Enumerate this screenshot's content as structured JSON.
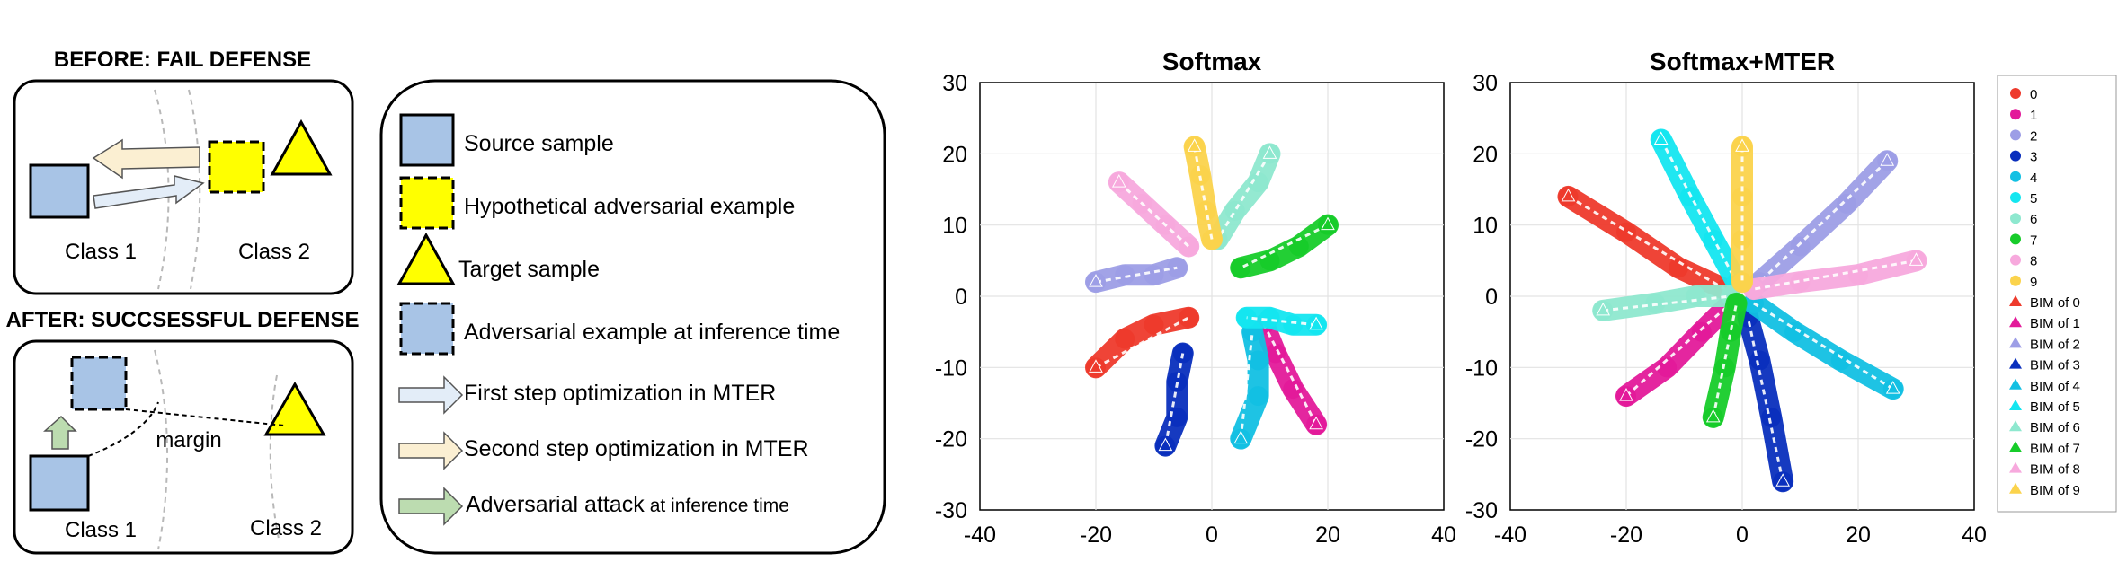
{
  "left": {
    "before_title": "BEFORE: FAIL DEFENSE",
    "after_title": "AFTER: SUCCSESSFUL DEFENSE",
    "class1": "Class 1",
    "class2": "Class 2",
    "margin": "margin"
  },
  "legend": {
    "items": [
      {
        "icon": "blue-square",
        "label": "Source sample"
      },
      {
        "icon": "yellow-dashed-square",
        "label": "Hypothetical adversarial example"
      },
      {
        "icon": "yellow-triangle",
        "label": "Target sample"
      },
      {
        "icon": "blue-dashed-square",
        "label": "Adversarial example at inference time"
      },
      {
        "icon": "blue-arrow",
        "label": "First step optimization in MTER"
      },
      {
        "icon": "beige-arrow",
        "label": "Second step optimization in MTER"
      },
      {
        "icon": "green-arrow",
        "label": "Adversarial attack",
        "label_suffix": "at inference time"
      }
    ]
  },
  "colors": {
    "blue_fill": "#a8c4e6",
    "yellow_fill": "#ffff00",
    "arrow_blue": "#e3edf8",
    "arrow_beige": "#fbefd2",
    "arrow_green": "#bcdcb0",
    "class_colors": [
      "#ee3a2c",
      "#e31a9a",
      "#9d9ee6",
      "#0a2fbd",
      "#12c0e3",
      "#14e6f0",
      "#8ee8cf",
      "#17cc2a",
      "#f7a9dd",
      "#fbd34c"
    ]
  },
  "chart_data": [
    {
      "type": "scatter",
      "title": "Softmax",
      "xlim": [
        -40,
        40
      ],
      "ylim": [
        -30,
        30
      ],
      "xticks": [
        -40,
        -20,
        0,
        20,
        40
      ],
      "yticks": [
        -30,
        -20,
        -10,
        0,
        10,
        20,
        30
      ],
      "grid": true,
      "clusters": [
        {
          "class": "0",
          "path": [
            [
              -20,
              -10
            ],
            [
              -15,
              -6
            ],
            [
              -10,
              -4
            ],
            [
              -4,
              -3
            ]
          ]
        },
        {
          "class": "1",
          "path": [
            [
              18,
              -18
            ],
            [
              14,
              -13
            ],
            [
              11,
              -8
            ],
            [
              9,
              -4
            ]
          ]
        },
        {
          "class": "2",
          "path": [
            [
              -20,
              2
            ],
            [
              -15,
              3
            ],
            [
              -10,
              3
            ],
            [
              -6,
              4
            ]
          ]
        },
        {
          "class": "3",
          "path": [
            [
              -8,
              -21
            ],
            [
              -6,
              -17
            ],
            [
              -6,
              -12
            ],
            [
              -5,
              -8
            ]
          ]
        },
        {
          "class": "4",
          "path": [
            [
              5,
              -20
            ],
            [
              8,
              -14
            ],
            [
              8,
              -9
            ],
            [
              7,
              -5
            ]
          ]
        },
        {
          "class": "5",
          "path": [
            [
              18,
              -4
            ],
            [
              14,
              -4
            ],
            [
              10,
              -3
            ],
            [
              6,
              -3
            ]
          ]
        },
        {
          "class": "6",
          "path": [
            [
              10,
              20
            ],
            [
              8,
              16
            ],
            [
              4,
              12
            ],
            [
              1,
              8
            ]
          ]
        },
        {
          "class": "7",
          "path": [
            [
              20,
              10
            ],
            [
              15,
              7
            ],
            [
              10,
              5
            ],
            [
              5,
              4
            ]
          ]
        },
        {
          "class": "8",
          "path": [
            [
              -16,
              16
            ],
            [
              -12,
              13
            ],
            [
              -8,
              10
            ],
            [
              -4,
              7
            ]
          ]
        },
        {
          "class": "9",
          "path": [
            [
              -3,
              21
            ],
            [
              -2,
              17
            ],
            [
              -1,
              12
            ],
            [
              0,
              8
            ]
          ]
        }
      ]
    },
    {
      "type": "scatter",
      "title": "Softmax+MTER",
      "xlim": [
        -40,
        40
      ],
      "ylim": [
        -30,
        30
      ],
      "xticks": [
        -40,
        -20,
        0,
        20,
        40
      ],
      "yticks": [
        -30,
        -20,
        -10,
        0,
        10,
        20,
        30
      ],
      "grid": true,
      "clusters": [
        {
          "class": "0",
          "path": [
            [
              -30,
              14
            ],
            [
              -20,
              9
            ],
            [
              -11,
              4
            ],
            [
              -3,
              1
            ]
          ]
        },
        {
          "class": "1",
          "path": [
            [
              -20,
              -14
            ],
            [
              -13,
              -10
            ],
            [
              -7,
              -5
            ],
            [
              -2,
              -1
            ]
          ]
        },
        {
          "class": "2",
          "path": [
            [
              25,
              19
            ],
            [
              18,
              13
            ],
            [
              10,
              7
            ],
            [
              3,
              2
            ]
          ]
        },
        {
          "class": "3",
          "path": [
            [
              7,
              -26
            ],
            [
              5,
              -17
            ],
            [
              3,
              -9
            ],
            [
              1,
              -3
            ]
          ]
        },
        {
          "class": "4",
          "path": [
            [
              26,
              -13
            ],
            [
              17,
              -9
            ],
            [
              9,
              -5
            ],
            [
              2,
              -1
            ]
          ]
        },
        {
          "class": "5",
          "path": [
            [
              -14,
              22
            ],
            [
              -9,
              14
            ],
            [
              -5,
              8
            ],
            [
              -1,
              2
            ]
          ]
        },
        {
          "class": "6",
          "path": [
            [
              -24,
              -2
            ],
            [
              -15,
              -1
            ],
            [
              -8,
              0
            ],
            [
              -2,
              0
            ]
          ]
        },
        {
          "class": "7",
          "path": [
            [
              -5,
              -17
            ],
            [
              -3,
              -10
            ],
            [
              -2,
              -5
            ],
            [
              -1,
              -1
            ]
          ]
        },
        {
          "class": "8",
          "path": [
            [
              30,
              5
            ],
            [
              20,
              3
            ],
            [
              10,
              2
            ],
            [
              2,
              1
            ]
          ]
        },
        {
          "class": "9",
          "path": [
            [
              0,
              21
            ],
            [
              0,
              14
            ],
            [
              0,
              8
            ],
            [
              0,
              2
            ]
          ]
        }
      ]
    }
  ],
  "plot_legend": [
    "0",
    "1",
    "2",
    "3",
    "4",
    "5",
    "6",
    "7",
    "8",
    "9",
    "BIM of 0",
    "BIM of 1",
    "BIM of 2",
    "BIM of 3",
    "BIM of 4",
    "BIM of 5",
    "BIM of 6",
    "BIM of 7",
    "BIM of 8",
    "BIM of 9"
  ]
}
